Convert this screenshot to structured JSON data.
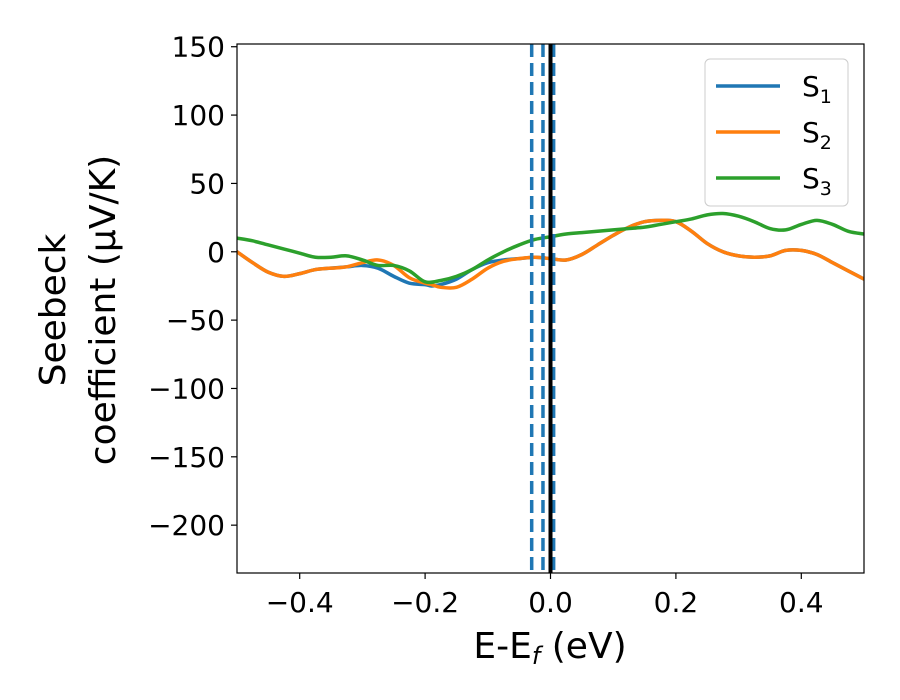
{
  "chart_data": {
    "type": "line",
    "xlabel": {
      "main": "E-E",
      "sub": "f",
      "rest": " (eV)"
    },
    "ylabel": {
      "line1": "Seebeck",
      "line2": "coefficient  (μV/K)"
    },
    "xlim": [
      -0.5,
      0.5
    ],
    "ylim": [
      -235,
      152
    ],
    "xticks": [
      -0.4,
      -0.2,
      0.0,
      0.2,
      0.4
    ],
    "xtick_labels": [
      "−0.4",
      "−0.2",
      "0.0",
      "0.2",
      "0.4"
    ],
    "yticks": [
      150,
      100,
      50,
      0,
      -50,
      -100,
      -150,
      -200
    ],
    "ytick_labels": [
      "150",
      "100",
      "50",
      "0",
      "−50",
      "−100",
      "−150",
      "−200"
    ],
    "grid": false,
    "legend_position": "top-right",
    "vlines": [
      {
        "x": -0.03,
        "style": "dashed",
        "color": "#1f77b4"
      },
      {
        "x": -0.012,
        "style": "dashed",
        "color": "#1f77b4"
      },
      {
        "x": 0.005,
        "style": "dashed",
        "color": "#1f77b4"
      },
      {
        "x": 0.0,
        "style": "solid",
        "color": "#000000"
      }
    ],
    "series": [
      {
        "name": {
          "main": "S",
          "sub": "1"
        },
        "color": "#1f77b4",
        "x": [
          -0.5,
          -0.475,
          -0.45,
          -0.425,
          -0.4,
          -0.375,
          -0.35,
          -0.325,
          -0.3,
          -0.275,
          -0.25,
          -0.225,
          -0.2,
          -0.19,
          -0.175,
          -0.15,
          -0.125,
          -0.1,
          -0.075,
          -0.05,
          -0.025,
          0.0,
          0.025,
          0.05,
          0.075,
          0.1,
          0.125,
          0.15,
          0.175,
          0.2,
          0.225,
          0.25,
          0.275,
          0.3,
          0.325,
          0.35,
          0.375,
          0.4,
          0.425,
          0.45,
          0.475,
          0.5
        ],
        "y": [
          0,
          -8,
          -15,
          -18,
          -16,
          -13,
          -12,
          -11,
          -10,
          -12,
          -18,
          -23,
          -24,
          -25,
          -24,
          -20,
          -13,
          -8,
          -6,
          -5,
          -4,
          -5,
          -6,
          -2,
          5,
          12,
          18,
          22,
          23,
          22,
          15,
          6,
          0,
          -3,
          -4,
          -3,
          1,
          1,
          -2,
          -8,
          -14,
          -20
        ]
      },
      {
        "name": {
          "main": "S",
          "sub": "2"
        },
        "color": "#ff7f0e",
        "x": [
          -0.5,
          -0.475,
          -0.45,
          -0.425,
          -0.4,
          -0.375,
          -0.35,
          -0.325,
          -0.3,
          -0.275,
          -0.25,
          -0.225,
          -0.2,
          -0.19,
          -0.175,
          -0.15,
          -0.125,
          -0.1,
          -0.075,
          -0.05,
          -0.025,
          0.0,
          0.025,
          0.05,
          0.075,
          0.1,
          0.125,
          0.15,
          0.175,
          0.2,
          0.225,
          0.25,
          0.275,
          0.3,
          0.325,
          0.35,
          0.375,
          0.4,
          0.425,
          0.45,
          0.475,
          0.5
        ],
        "y": [
          0,
          -8,
          -15,
          -18,
          -16,
          -13,
          -12,
          -11,
          -8,
          -6,
          -10,
          -19,
          -23,
          -24,
          -26,
          -26,
          -20,
          -12,
          -7,
          -5,
          -4,
          -5,
          -6,
          -2,
          5,
          12,
          18,
          22,
          23,
          22,
          15,
          6,
          0,
          -3,
          -4,
          -3,
          1,
          1,
          -2,
          -8,
          -14,
          -20
        ]
      },
      {
        "name": {
          "main": "S",
          "sub": "3"
        },
        "color": "#2ca02c",
        "x": [
          -0.5,
          -0.475,
          -0.45,
          -0.425,
          -0.4,
          -0.375,
          -0.35,
          -0.325,
          -0.3,
          -0.275,
          -0.25,
          -0.225,
          -0.2,
          -0.175,
          -0.15,
          -0.125,
          -0.1,
          -0.075,
          -0.05,
          -0.025,
          0.0,
          0.025,
          0.05,
          0.075,
          0.1,
          0.125,
          0.15,
          0.175,
          0.2,
          0.225,
          0.25,
          0.275,
          0.3,
          0.325,
          0.35,
          0.375,
          0.4,
          0.425,
          0.45,
          0.475,
          0.5
        ],
        "y": [
          10,
          8,
          5,
          2,
          -1,
          -4,
          -4,
          -3,
          -6,
          -10,
          -10,
          -14,
          -22,
          -21,
          -18,
          -13,
          -6,
          0,
          5,
          9,
          11,
          13,
          14,
          15,
          16,
          17,
          18,
          20,
          22,
          24,
          27,
          28,
          26,
          22,
          17,
          16,
          20,
          23,
          20,
          15,
          13
        ]
      }
    ]
  }
}
